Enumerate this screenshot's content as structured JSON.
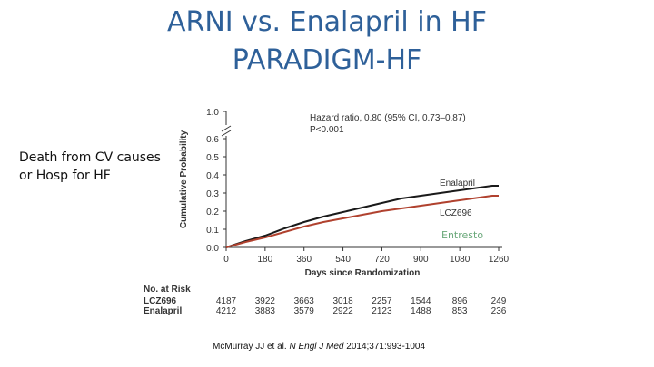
{
  "title_line1": "ARNI vs. Enalapril in HF",
  "title_line2": "PARADIGM-HF",
  "side_label": [
    "Death from CV causes",
    "or Hosp for HF"
  ],
  "annotation_entresto": "Entresto",
  "citation": {
    "authors": "McMurray JJ et al.",
    "journal": "N Engl J Med",
    "ref": "2014;371:993-1004"
  },
  "chart_data": {
    "type": "line",
    "xlabel": "Days since Randomization",
    "ylabel": "Cumulative Probability",
    "xlim": [
      0,
      1260
    ],
    "ylim": [
      0,
      1.0
    ],
    "x_ticks": [
      "0",
      "180",
      "360",
      "540",
      "720",
      "900",
      "1080",
      "1260"
    ],
    "y_ticks": [
      "0.0",
      "0.1",
      "0.2",
      "0.3",
      "0.4",
      "0.5",
      "0.6",
      "1.0"
    ],
    "axis_break": "between 0.6 and 1.0",
    "hazard_text": "Hazard ratio, 0.80 (95% CI, 0.73–0.87)",
    "p_text": "P<0.001",
    "series": [
      {
        "name": "Enalapril",
        "color": "#1a1a1a",
        "x": [
          0,
          90,
          180,
          270,
          360,
          450,
          540,
          630,
          720,
          810,
          900,
          990,
          1080,
          1170,
          1230,
          1260
        ],
        "y": [
          0,
          0.035,
          0.065,
          0.105,
          0.14,
          0.17,
          0.195,
          0.22,
          0.245,
          0.27,
          0.285,
          0.3,
          0.315,
          0.33,
          0.34,
          0.34
        ]
      },
      {
        "name": "LCZ696",
        "color": "#b0412e",
        "x": [
          0,
          90,
          180,
          270,
          360,
          450,
          540,
          630,
          720,
          810,
          900,
          990,
          1080,
          1170,
          1230,
          1260
        ],
        "y": [
          0,
          0.03,
          0.055,
          0.085,
          0.115,
          0.14,
          0.16,
          0.18,
          0.2,
          0.215,
          0.23,
          0.245,
          0.26,
          0.275,
          0.285,
          0.285
        ]
      }
    ],
    "at_risk": {
      "title": "No. at Risk",
      "rows": [
        {
          "label": "LCZ696",
          "values": [
            "4187",
            "3922",
            "3663",
            "3018",
            "2257",
            "1544",
            "896",
            "249"
          ]
        },
        {
          "label": "Enalapril",
          "values": [
            "4212",
            "3883",
            "3579",
            "2922",
            "2123",
            "1488",
            "853",
            "236"
          ]
        }
      ]
    }
  }
}
